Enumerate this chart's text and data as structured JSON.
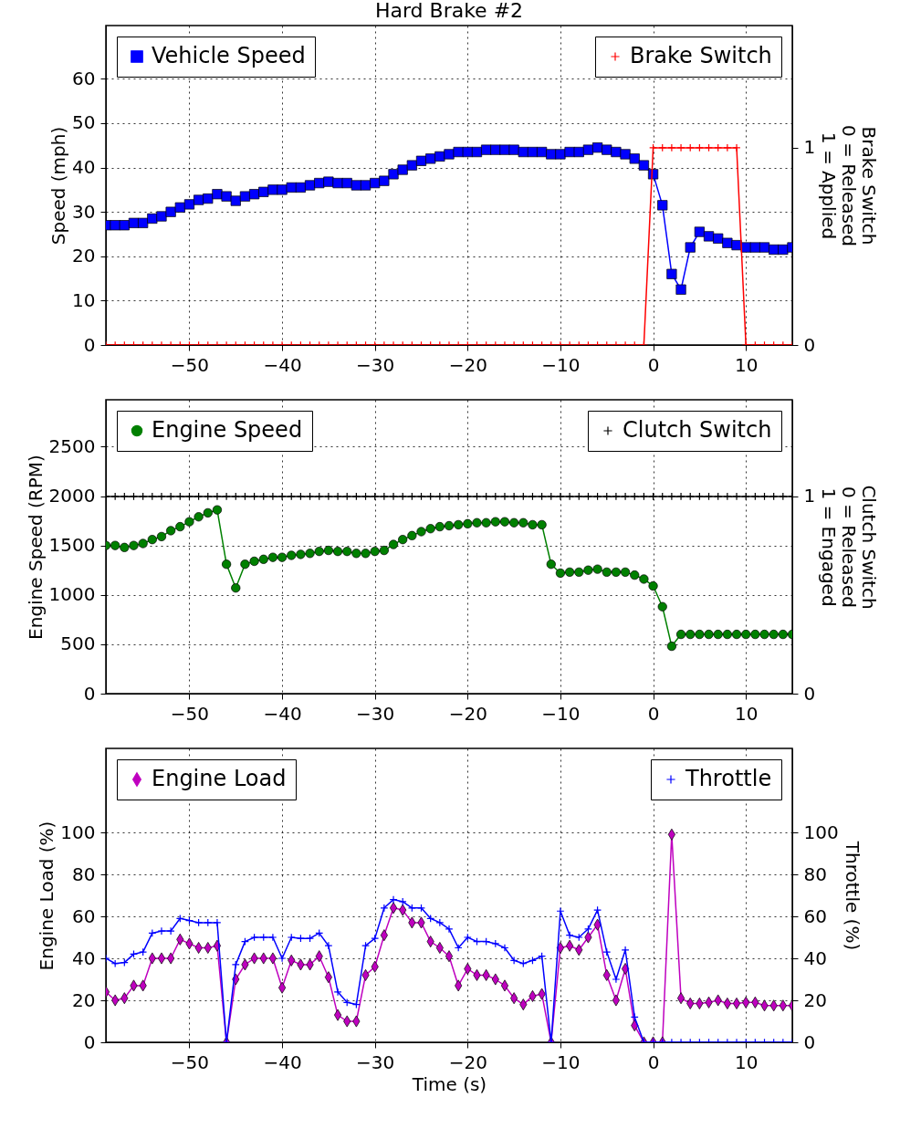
{
  "chart_data": [
    {
      "type": "line",
      "title": "Hard Brake #2",
      "ylabel": "Speed (mph)",
      "y2label": "Brake Switch\n0 = Released\n1 = Applied",
      "x": [
        -59,
        -58,
        -57,
        -56,
        -55,
        -54,
        -53,
        -52,
        -51,
        -50,
        -49,
        -48,
        -47,
        -46,
        -45,
        -44,
        -43,
        -42,
        -41,
        -40,
        -39,
        -38,
        -37,
        -36,
        -35,
        -34,
        -33,
        -32,
        -31,
        -30,
        -29,
        -28,
        -27,
        -26,
        -25,
        -24,
        -23,
        -22,
        -21,
        -20,
        -19,
        -18,
        -17,
        -16,
        -15,
        -14,
        -13,
        -12,
        -11,
        -10,
        -9,
        -8,
        -7,
        -6,
        -5,
        -4,
        -3,
        -2,
        -1,
        0,
        1,
        2,
        3,
        4,
        5,
        6,
        7,
        8,
        9,
        10,
        11,
        12,
        13,
        14,
        15
      ],
      "xlim": [
        -59,
        15
      ],
      "xticks": [
        -50,
        -40,
        -30,
        -20,
        -10,
        0,
        10
      ],
      "ylim": [
        0,
        72
      ],
      "yticks": [
        0,
        10,
        20,
        30,
        40,
        50,
        60
      ],
      "y2lim": [
        0,
        1.62
      ],
      "y2ticks": [
        0,
        1
      ],
      "grid": true,
      "legend": "top",
      "line_style": "solid",
      "series": [
        {
          "name": "Vehicle Speed",
          "color": "#0000ff",
          "marker": "square",
          "axis": "y",
          "values": [
            27,
            27,
            27,
            27.5,
            27.5,
            28.5,
            29,
            30,
            31,
            31.7,
            32.7,
            33,
            34,
            33.5,
            32.5,
            33.5,
            34,
            34.5,
            35,
            35,
            35.5,
            35.5,
            36,
            36.5,
            36.8,
            36.5,
            36.5,
            36,
            36,
            36.5,
            37,
            38.5,
            39.5,
            40.5,
            41.5,
            42,
            42.5,
            43,
            43.5,
            43.5,
            43.5,
            44,
            44,
            44,
            44,
            43.5,
            43.5,
            43.5,
            43,
            43,
            43.5,
            43.5,
            44,
            44.5,
            44,
            43.5,
            43,
            42,
            40.5,
            38.5,
            31.5,
            16,
            12.5,
            22,
            25.5,
            24.5,
            24,
            23,
            22.5,
            22,
            22,
            22,
            21.5,
            21.5,
            22
          ]
        },
        {
          "name": "Brake Switch",
          "color": "#ff0000",
          "marker": "cross",
          "axis": "y2",
          "values": [
            0,
            0,
            0,
            0,
            0,
            0,
            0,
            0,
            0,
            0,
            0,
            0,
            0,
            0,
            0,
            0,
            0,
            0,
            0,
            0,
            0,
            0,
            0,
            0,
            0,
            0,
            0,
            0,
            0,
            0,
            0,
            0,
            0,
            0,
            0,
            0,
            0,
            0,
            0,
            0,
            0,
            0,
            0,
            0,
            0,
            0,
            0,
            0,
            0,
            0,
            0,
            0,
            0,
            0,
            0,
            0,
            0,
            0,
            0,
            1,
            1,
            1,
            1,
            1,
            1,
            1,
            1,
            1,
            1,
            0,
            0,
            0,
            0,
            0,
            0
          ]
        }
      ]
    },
    {
      "type": "line",
      "ylabel": "Engine Speed (RPM)",
      "y2label": "Clutch Switch\n0 = Released\n1 = Engaged",
      "x": [
        -59,
        -58,
        -57,
        -56,
        -55,
        -54,
        -53,
        -52,
        -51,
        -50,
        -49,
        -48,
        -47,
        -46,
        -45,
        -44,
        -43,
        -42,
        -41,
        -40,
        -39,
        -38,
        -37,
        -36,
        -35,
        -34,
        -33,
        -32,
        -31,
        -30,
        -29,
        -28,
        -27,
        -26,
        -25,
        -24,
        -23,
        -22,
        -21,
        -20,
        -19,
        -18,
        -17,
        -16,
        -15,
        -14,
        -13,
        -12,
        -11,
        -10,
        -9,
        -8,
        -7,
        -6,
        -5,
        -4,
        -3,
        -2,
        -1,
        0,
        1,
        2,
        3,
        4,
        5,
        6,
        7,
        8,
        9,
        10,
        11,
        12,
        13,
        14,
        15
      ],
      "xlim": [
        -59,
        15
      ],
      "xticks": [
        -50,
        -40,
        -30,
        -20,
        -10,
        0,
        10
      ],
      "ylim": [
        0,
        2975
      ],
      "yticks": [
        0,
        500,
        1000,
        1500,
        2000,
        2500
      ],
      "y2lim": [
        0,
        1.49
      ],
      "y2ticks": [
        0,
        1
      ],
      "grid": true,
      "legend": "top",
      "line_style": "solid",
      "series": [
        {
          "name": "Engine Speed",
          "color": "#008000",
          "marker": "circle",
          "axis": "y",
          "values": [
            1500,
            1500,
            1480,
            1500,
            1520,
            1560,
            1590,
            1650,
            1690,
            1740,
            1790,
            1830,
            1860,
            1310,
            1070,
            1310,
            1340,
            1360,
            1380,
            1380,
            1400,
            1410,
            1420,
            1440,
            1450,
            1440,
            1440,
            1420,
            1420,
            1440,
            1450,
            1510,
            1560,
            1600,
            1640,
            1670,
            1690,
            1700,
            1710,
            1720,
            1730,
            1730,
            1740,
            1740,
            1730,
            1730,
            1710,
            1710,
            1310,
            1220,
            1230,
            1230,
            1250,
            1260,
            1230,
            1230,
            1230,
            1200,
            1160,
            1090,
            880,
            480,
            600,
            600,
            600,
            600,
            600,
            600,
            600,
            600,
            600,
            600,
            600,
            600,
            600
          ]
        },
        {
          "name": "Clutch Switch",
          "color": "#000000",
          "marker": "cross",
          "axis": "y2",
          "values": [
            1,
            1,
            1,
            1,
            1,
            1,
            1,
            1,
            1,
            1,
            1,
            1,
            1,
            1,
            1,
            1,
            1,
            1,
            1,
            1,
            1,
            1,
            1,
            1,
            1,
            1,
            1,
            1,
            1,
            1,
            1,
            1,
            1,
            1,
            1,
            1,
            1,
            1,
            1,
            1,
            1,
            1,
            1,
            1,
            1,
            1,
            1,
            1,
            1,
            1,
            1,
            1,
            1,
            1,
            1,
            1,
            1,
            1,
            1,
            1,
            1,
            1,
            1,
            1,
            1,
            1,
            1,
            1,
            1,
            1,
            1,
            1,
            1,
            1,
            1
          ]
        }
      ]
    },
    {
      "type": "line",
      "xlabel": "Time (s)",
      "ylabel": "Engine Load (%)",
      "y2label": "Throttle (%)",
      "x": [
        -59,
        -58,
        -57,
        -56,
        -55,
        -54,
        -53,
        -52,
        -51,
        -50,
        -49,
        -48,
        -47,
        -46,
        -45,
        -44,
        -43,
        -42,
        -41,
        -40,
        -39,
        -38,
        -37,
        -36,
        -35,
        -34,
        -33,
        -32,
        -31,
        -30,
        -29,
        -28,
        -27,
        -26,
        -25,
        -24,
        -23,
        -22,
        -21,
        -20,
        -19,
        -18,
        -17,
        -16,
        -15,
        -14,
        -13,
        -12,
        -11,
        -10,
        -9,
        -8,
        -7,
        -6,
        -5,
        -4,
        -3,
        -2,
        -1,
        0,
        1,
        2,
        3,
        4,
        5,
        6,
        7,
        8,
        9,
        10,
        11,
        12,
        13,
        14,
        15
      ],
      "xlim": [
        -59,
        15
      ],
      "xticks": [
        -50,
        -40,
        -30,
        -20,
        -10,
        0,
        10
      ],
      "ylim": [
        0,
        140
      ],
      "yticks": [
        0,
        20,
        40,
        60,
        80,
        100
      ],
      "y2lim": [
        0,
        140
      ],
      "y2ticks": [
        0,
        20,
        40,
        60,
        80,
        100
      ],
      "grid": true,
      "legend": "top",
      "line_style": "solid",
      "series": [
        {
          "name": "Engine Load",
          "color": "#bf00bf",
          "marker": "diamond",
          "axis": "y",
          "values": [
            24,
            20,
            21,
            27,
            27,
            40,
            40,
            40,
            49,
            47,
            45,
            45,
            46,
            0,
            30,
            37,
            40,
            40,
            40,
            26,
            39,
            37,
            37,
            41,
            31,
            13,
            10,
            10,
            32,
            36,
            51,
            64,
            63,
            57,
            57,
            48,
            45,
            41,
            27,
            35,
            32,
            32,
            30,
            27,
            21,
            18,
            22,
            23,
            0,
            45,
            46,
            44,
            50,
            56,
            32,
            20,
            35,
            8,
            0,
            0,
            0,
            99,
            21,
            18.5,
            18.5,
            19,
            20,
            18.5,
            18.5,
            19,
            19,
            17.5,
            17.5,
            17.5,
            17.5
          ]
        },
        {
          "name": "Throttle",
          "color": "#0000ff",
          "marker": "cross",
          "axis": "y2",
          "values": [
            40,
            37.5,
            38,
            42,
            43,
            52,
            53,
            53,
            59,
            58,
            57,
            57,
            57,
            0,
            37,
            48,
            50,
            50,
            50,
            40,
            50,
            49.5,
            49.5,
            52,
            46,
            24,
            19,
            18,
            46,
            49.5,
            64,
            68,
            67,
            64,
            64,
            59,
            57,
            54,
            45,
            50,
            48,
            48,
            47,
            45,
            39,
            37.5,
            39,
            41,
            0,
            62.5,
            51,
            50,
            54,
            63,
            43,
            30,
            44,
            12,
            0,
            0,
            0,
            0,
            0,
            0,
            0,
            0,
            0,
            0,
            0,
            0,
            0,
            0,
            0,
            0,
            0
          ]
        }
      ]
    }
  ]
}
